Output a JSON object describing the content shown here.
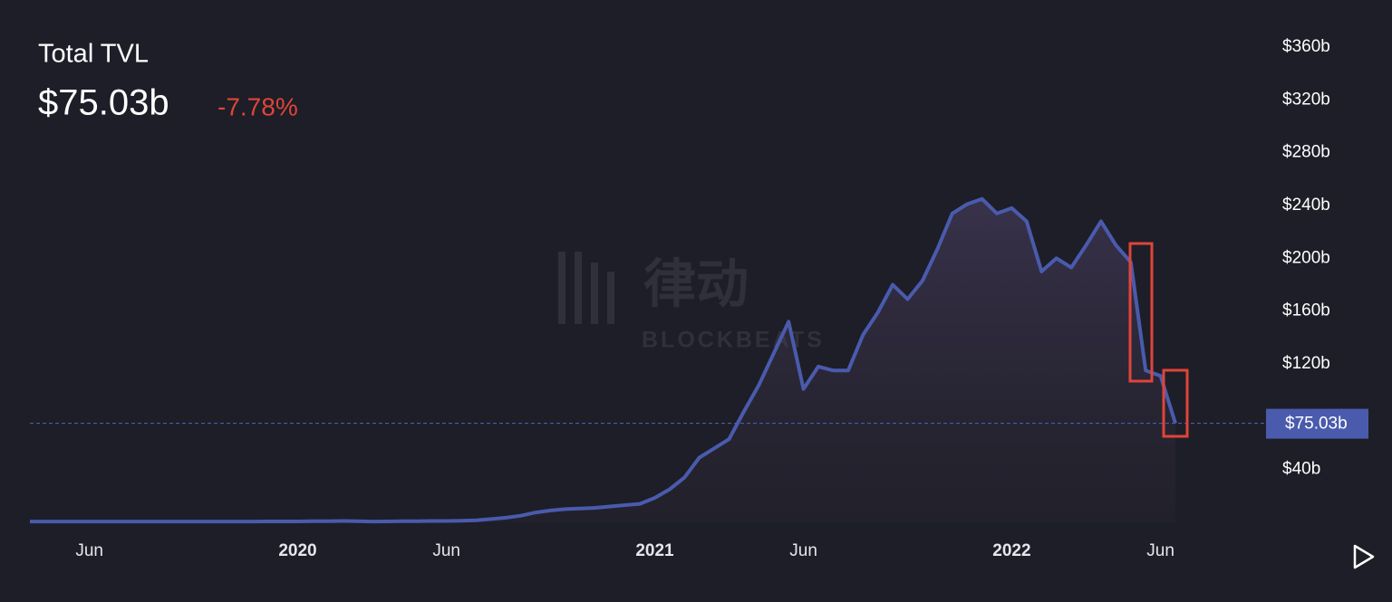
{
  "chart_data": {
    "type": "line",
    "title": "Total TVL",
    "current": {
      "value": 75.03,
      "label": "$75.03b",
      "change": "-7.78%"
    },
    "watermark": {
      "cn": "律动",
      "en": "BLOCKBEATS"
    },
    "color": "#4a5bad",
    "change_color": "#e0443a",
    "categories": [
      null,
      null,
      null,
      null,
      "Jun",
      null,
      null,
      null,
      null,
      null,
      null,
      null,
      null,
      null,
      null,
      null,
      null,
      null,
      "2020",
      null,
      null,
      null,
      null,
      null,
      null,
      null,
      null,
      null,
      "Jun",
      null,
      null,
      null,
      null,
      null,
      null,
      null,
      null,
      null,
      null,
      null,
      null,
      null,
      "2021",
      null,
      null,
      null,
      null,
      null,
      null,
      null,
      null,
      null,
      "Jun",
      null,
      null,
      null,
      null,
      null,
      null,
      null,
      null,
      null,
      null,
      null,
      null,
      null,
      "2022",
      null,
      null,
      null,
      null,
      null,
      null,
      null,
      null,
      null,
      "Jun",
      null
    ],
    "values": [
      0.6,
      0.6,
      0.6,
      0.6,
      0.6,
      0.6,
      0.6,
      0.6,
      0.6,
      0.6,
      0.6,
      0.6,
      0.6,
      0.6,
      0.6,
      0.6,
      0.7,
      0.7,
      0.7,
      0.8,
      0.9,
      1,
      0.9,
      0.6,
      0.7,
      0.8,
      0.9,
      1,
      1,
      1.2,
      1.5,
      2.5,
      3.5,
      5,
      7.5,
      9,
      10,
      10.5,
      11,
      12,
      13,
      14,
      18.5,
      25,
      34,
      49,
      56,
      63,
      84,
      104,
      128,
      152,
      101,
      118,
      115,
      115,
      142,
      159,
      180,
      169,
      183,
      207,
      234,
      241,
      245,
      234,
      238,
      228,
      190,
      200,
      193,
      210,
      228,
      210,
      197,
      115,
      111,
      75.03
    ],
    "ylim": [
      0,
      360
    ],
    "yticks": [
      {
        "value": 40,
        "label": "$40b"
      },
      {
        "value": 120,
        "label": "$120b"
      },
      {
        "value": 160,
        "label": "$160b"
      },
      {
        "value": 200,
        "label": "$200b"
      },
      {
        "value": 240,
        "label": "$240b"
      },
      {
        "value": 280,
        "label": "$280b"
      },
      {
        "value": 320,
        "label": "$320b"
      },
      {
        "value": 360,
        "label": "$360b"
      }
    ],
    "grid": false
  }
}
